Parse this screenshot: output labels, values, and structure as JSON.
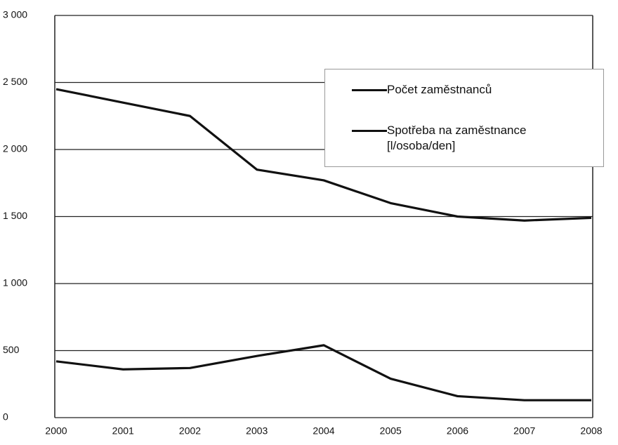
{
  "chart_data": {
    "type": "line",
    "categories": [
      "2000",
      "2001",
      "2002",
      "2003",
      "2004",
      "2005",
      "2006",
      "2007",
      "2008"
    ],
    "series": [
      {
        "name": "Počet zaměstnanců",
        "color": "#111111",
        "values": [
          2450,
          2350,
          2250,
          1850,
          1770,
          1600,
          1500,
          1470,
          1490
        ]
      },
      {
        "name": "Spotřeba na zaměstnance [l/osoba/den]",
        "color": "#111111",
        "values": [
          420,
          360,
          370,
          460,
          540,
          290,
          160,
          130,
          130
        ]
      }
    ],
    "ylim": [
      0,
      3000
    ],
    "yticks": [
      0,
      500,
      {
        "value": 1000,
        "label": "1 000"
      },
      {
        "value": 1500,
        "label": "1 500"
      },
      {
        "value": 2000,
        "label": "2 000"
      },
      {
        "value": 2500,
        "label": "2 500"
      },
      {
        "value": 3000,
        "label": "3 000"
      }
    ],
    "grid": true
  }
}
